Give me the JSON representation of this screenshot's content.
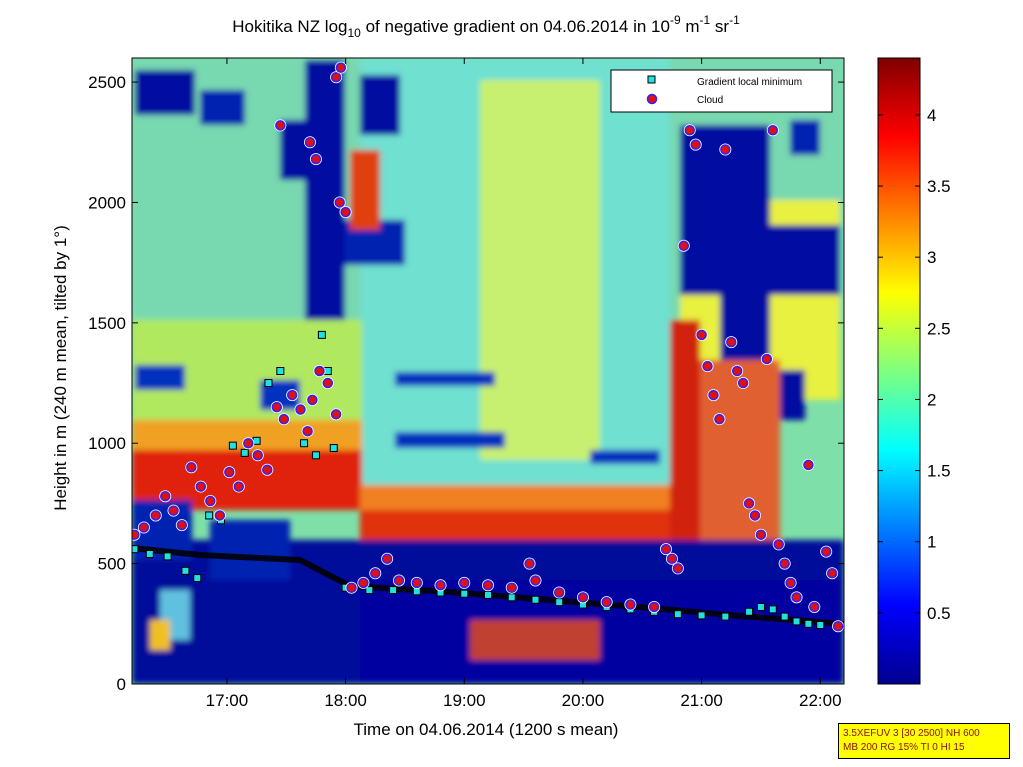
{
  "chart_data": {
    "type": "heatmap",
    "title": {
      "prefix": "Hokitika NZ log",
      "sub": "10",
      "middle": " of negative gradient on 04.06.2014 in 10",
      "sup1": "-9",
      "unit1": " m",
      "sup2": "-1",
      "unit2": " sr",
      "sup3": "-1"
    },
    "xlabel": "Time on 04.06.2014 (1200 s mean)",
    "ylabel": "Height in m (240 m mean, tilted by 1°)",
    "x_range_hours": [
      16.2,
      22.2
    ],
    "y_range_m": [
      0,
      2600
    ],
    "x_ticks": [
      {
        "value": 17,
        "label": "17:00"
      },
      {
        "value": 18,
        "label": "18:00"
      },
      {
        "value": 19,
        "label": "19:00"
      },
      {
        "value": 20,
        "label": "20:00"
      },
      {
        "value": 21,
        "label": "21:00"
      },
      {
        "value": 22,
        "label": "22:00"
      }
    ],
    "y_ticks": [
      {
        "value": 0,
        "label": "0"
      },
      {
        "value": 500,
        "label": "500"
      },
      {
        "value": 1000,
        "label": "1000"
      },
      {
        "value": 1500,
        "label": "1500"
      },
      {
        "value": 2000,
        "label": "2000"
      },
      {
        "value": 2500,
        "label": "2500"
      }
    ],
    "colorbar": {
      "range": [
        0,
        4.4
      ],
      "ticks": [
        {
          "value": 0.5,
          "label": "0.5"
        },
        {
          "value": 1,
          "label": "1"
        },
        {
          "value": 1.5,
          "label": "1.5"
        },
        {
          "value": 2,
          "label": "2"
        },
        {
          "value": 2.5,
          "label": "2.5"
        },
        {
          "value": 3,
          "label": "3"
        },
        {
          "value": 3.5,
          "label": "3.5"
        },
        {
          "value": 4,
          "label": "4"
        }
      ]
    },
    "legend": {
      "placement": "top-right",
      "entries": [
        {
          "label": "Gradient local minimum",
          "color": "#20e0e0"
        },
        {
          "label": "Cloud",
          "color": "#e01010"
        }
      ]
    },
    "gradient_local_minimum": [
      [
        16.22,
        560
      ],
      [
        16.35,
        540
      ],
      [
        16.5,
        530
      ],
      [
        16.65,
        470
      ],
      [
        16.75,
        440
      ],
      [
        16.85,
        700
      ],
      [
        16.95,
        680
      ],
      [
        17.05,
        990
      ],
      [
        17.15,
        960
      ],
      [
        17.25,
        1010
      ],
      [
        17.35,
        1250
      ],
      [
        17.45,
        1300
      ],
      [
        17.55,
        1200
      ],
      [
        17.65,
        1000
      ],
      [
        17.75,
        950
      ],
      [
        17.8,
        1450
      ],
      [
        17.85,
        1300
      ],
      [
        17.9,
        980
      ],
      [
        18.0,
        400
      ],
      [
        18.2,
        390
      ],
      [
        18.4,
        390
      ],
      [
        18.6,
        385
      ],
      [
        18.8,
        380
      ],
      [
        19.0,
        375
      ],
      [
        19.2,
        370
      ],
      [
        19.4,
        360
      ],
      [
        19.6,
        350
      ],
      [
        19.8,
        340
      ],
      [
        20.0,
        330
      ],
      [
        20.2,
        320
      ],
      [
        20.4,
        310
      ],
      [
        20.6,
        300
      ],
      [
        20.8,
        290
      ],
      [
        21.0,
        285
      ],
      [
        21.2,
        280
      ],
      [
        21.4,
        300
      ],
      [
        21.5,
        320
      ],
      [
        21.6,
        310
      ],
      [
        21.7,
        280
      ],
      [
        21.8,
        260
      ],
      [
        21.9,
        250
      ],
      [
        22.0,
        245
      ],
      [
        22.15,
        240
      ]
    ],
    "cloud": [
      [
        16.22,
        620
      ],
      [
        16.3,
        650
      ],
      [
        16.4,
        700
      ],
      [
        16.48,
        780
      ],
      [
        16.55,
        720
      ],
      [
        16.62,
        660
      ],
      [
        16.7,
        900
      ],
      [
        16.78,
        820
      ],
      [
        16.86,
        760
      ],
      [
        16.94,
        700
      ],
      [
        17.02,
        880
      ],
      [
        17.1,
        820
      ],
      [
        17.18,
        1000
      ],
      [
        17.26,
        950
      ],
      [
        17.34,
        890
      ],
      [
        17.42,
        1150
      ],
      [
        17.48,
        1100
      ],
      [
        17.55,
        1200
      ],
      [
        17.62,
        1140
      ],
      [
        17.68,
        1050
      ],
      [
        17.72,
        1180
      ],
      [
        17.78,
        1300
      ],
      [
        17.85,
        1250
      ],
      [
        17.92,
        1120
      ],
      [
        17.45,
        2320
      ],
      [
        17.7,
        2250
      ],
      [
        17.75,
        2180
      ],
      [
        17.95,
        2000
      ],
      [
        18.0,
        1960
      ],
      [
        17.92,
        2520
      ],
      [
        17.96,
        2560
      ],
      [
        18.05,
        400
      ],
      [
        18.15,
        420
      ],
      [
        18.25,
        460
      ],
      [
        18.35,
        520
      ],
      [
        18.45,
        430
      ],
      [
        18.6,
        420
      ],
      [
        18.8,
        410
      ],
      [
        19.0,
        420
      ],
      [
        19.2,
        410
      ],
      [
        19.4,
        400
      ],
      [
        19.55,
        500
      ],
      [
        19.6,
        430
      ],
      [
        19.8,
        380
      ],
      [
        20.0,
        360
      ],
      [
        20.2,
        340
      ],
      [
        20.4,
        330
      ],
      [
        20.6,
        320
      ],
      [
        20.7,
        560
      ],
      [
        20.75,
        520
      ],
      [
        20.8,
        480
      ],
      [
        20.85,
        1820
      ],
      [
        20.9,
        2300
      ],
      [
        20.95,
        2240
      ],
      [
        21.0,
        1450
      ],
      [
        21.05,
        1320
      ],
      [
        21.1,
        1200
      ],
      [
        21.15,
        1100
      ],
      [
        21.2,
        2220
      ],
      [
        21.25,
        1420
      ],
      [
        21.3,
        1300
      ],
      [
        21.35,
        1250
      ],
      [
        21.4,
        750
      ],
      [
        21.45,
        700
      ],
      [
        21.5,
        620
      ],
      [
        21.55,
        1350
      ],
      [
        21.6,
        2300
      ],
      [
        21.65,
        580
      ],
      [
        21.7,
        500
      ],
      [
        21.75,
        420
      ],
      [
        21.8,
        360
      ],
      [
        21.9,
        910
      ],
      [
        21.95,
        320
      ],
      [
        22.05,
        550
      ],
      [
        22.1,
        460
      ],
      [
        22.15,
        240
      ]
    ]
  },
  "info_box": {
    "line1": "3.5XEFUV 3 [30 2500] NH 600",
    "line2": "MB 200 RG 15% TI 0 HI 15"
  }
}
